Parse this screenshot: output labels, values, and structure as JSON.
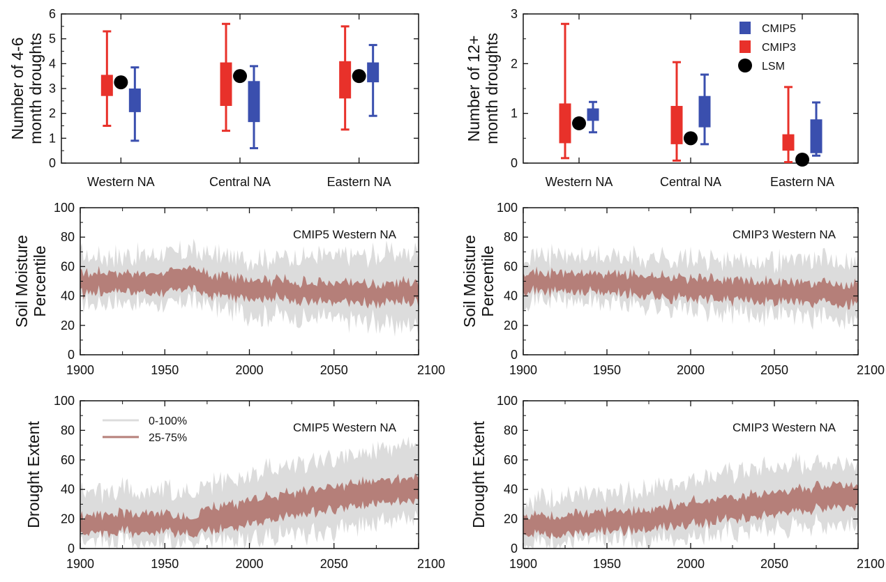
{
  "chart_data": [
    {
      "type": "box",
      "id": "p1",
      "ylabel": [
        "Number of 4-6",
        "month droughts"
      ],
      "ylim": [
        0,
        6
      ],
      "yticks": [
        0,
        1,
        2,
        3,
        4,
        5,
        6
      ],
      "categories": [
        "Western NA",
        "Central NA",
        "Eastern NA"
      ],
      "series": [
        {
          "name": "CMIP3",
          "color": "#e8312a",
          "boxes": [
            {
              "min": 1.5,
              "q1": 2.7,
              "q3": 3.55,
              "max": 5.3
            },
            {
              "min": 1.3,
              "q1": 2.3,
              "q3": 4.05,
              "max": 5.6
            },
            {
              "min": 1.35,
              "q1": 2.6,
              "q3": 4.1,
              "max": 5.5
            }
          ]
        },
        {
          "name": "CMIP5",
          "color": "#3a4fae",
          "boxes": [
            {
              "min": 0.9,
              "q1": 2.05,
              "q3": 3.0,
              "max": 3.85
            },
            {
              "min": 0.6,
              "q1": 1.65,
              "q3": 3.3,
              "max": 3.9
            },
            {
              "min": 1.9,
              "q1": 3.25,
              "q3": 4.05,
              "max": 4.75
            }
          ]
        },
        {
          "name": "LSM",
          "color": "#000000",
          "points": [
            3.25,
            3.5,
            3.5
          ]
        }
      ]
    },
    {
      "type": "box",
      "id": "p2",
      "ylabel": [
        "Number of 12+",
        "month droughts"
      ],
      "ylim": [
        0,
        3
      ],
      "yticks": [
        0,
        1,
        2,
        3
      ],
      "categories": [
        "Western NA",
        "Central NA",
        "Eastern NA"
      ],
      "legend": {
        "position": "top-right",
        "entries": [
          "CMIP5",
          "CMIP3",
          "LSM"
        ]
      },
      "series": [
        {
          "name": "CMIP3",
          "color": "#e8312a",
          "boxes": [
            {
              "min": 0.1,
              "q1": 0.4,
              "q3": 1.2,
              "max": 2.8
            },
            {
              "min": 0.05,
              "q1": 0.38,
              "q3": 1.15,
              "max": 2.03
            },
            {
              "min": 0.02,
              "q1": 0.25,
              "q3": 0.58,
              "max": 1.53
            }
          ]
        },
        {
          "name": "CMIP5",
          "color": "#3a4fae",
          "boxes": [
            {
              "min": 0.62,
              "q1": 0.85,
              "q3": 1.1,
              "max": 1.23
            },
            {
              "min": 0.38,
              "q1": 0.72,
              "q3": 1.35,
              "max": 1.78
            },
            {
              "min": 0.15,
              "q1": 0.2,
              "q3": 0.88,
              "max": 1.22
            }
          ]
        },
        {
          "name": "LSM",
          "color": "#000000",
          "points": [
            0.8,
            0.5,
            0.07
          ]
        }
      ]
    },
    {
      "type": "area",
      "id": "p3",
      "title": "CMIP5 Western NA",
      "ylabel": [
        "Soil Moisture",
        "Percentile"
      ],
      "xlim": [
        1900,
        2100
      ],
      "xticks": [
        1900,
        1950,
        2000,
        2050,
        2100
      ],
      "ylim": [
        0,
        100
      ],
      "yticks": [
        0,
        20,
        40,
        60,
        80,
        100
      ],
      "bands": {
        "x": [
          1900,
          1925,
          1950,
          1965,
          1975,
          2000,
          2025,
          2050,
          2075,
          2100
        ],
        "outer_low": [
          35,
          36,
          34,
          38,
          33,
          28,
          26,
          24,
          22,
          18
        ],
        "outer_high": [
          68,
          67,
          68,
          72,
          68,
          66,
          66,
          67,
          68,
          70
        ],
        "inner_low": [
          42,
          43,
          42,
          46,
          41,
          39,
          37,
          36,
          35,
          36
        ],
        "inner_high": [
          56,
          56,
          55,
          60,
          55,
          52,
          50,
          49,
          48,
          50
        ]
      }
    },
    {
      "type": "area",
      "id": "p4",
      "title": "CMIP3 Western NA",
      "ylabel": [
        "Soil Moisture",
        "Percentile"
      ],
      "xlim": [
        1900,
        2100
      ],
      "xticks": [
        1900,
        1950,
        2000,
        2050,
        2100
      ],
      "ylim": [
        0,
        100
      ],
      "yticks": [
        0,
        20,
        40,
        60,
        80,
        100
      ],
      "bands": {
        "x": [
          1900,
          1925,
          1950,
          1975,
          2000,
          2025,
          2050,
          2075,
          2100
        ],
        "outer_low": [
          38,
          37,
          36,
          34,
          31,
          29,
          28,
          26,
          24
        ],
        "outer_high": [
          68,
          67,
          67,
          66,
          64,
          64,
          64,
          65,
          64
        ],
        "inner_low": [
          44,
          43,
          42,
          40,
          38,
          37,
          36,
          35,
          35
        ],
        "inner_high": [
          57,
          56,
          55,
          54,
          52,
          51,
          50,
          49,
          49
        ]
      }
    },
    {
      "type": "area",
      "id": "p5",
      "title": "CMIP5 Western NA",
      "ylabel": [
        "Drought Extent"
      ],
      "xlim": [
        1900,
        2100
      ],
      "xticks": [
        1900,
        1950,
        2000,
        2050,
        2100
      ],
      "ylim": [
        0,
        100
      ],
      "yticks": [
        0,
        20,
        40,
        60,
        80,
        100
      ],
      "legend": {
        "position": "top-left",
        "entries": [
          "0-100%",
          "25-75%"
        ]
      },
      "bands": {
        "x": [
          1900,
          1925,
          1950,
          1965,
          1975,
          2000,
          2025,
          2050,
          2075,
          2100
        ],
        "outer_low": [
          5,
          5,
          4,
          3,
          4,
          7,
          10,
          13,
          16,
          20
        ],
        "outer_high": [
          38,
          40,
          40,
          36,
          42,
          50,
          57,
          62,
          66,
          70
        ],
        "inner_low": [
          10,
          11,
          11,
          9,
          11,
          16,
          22,
          27,
          30,
          32
        ],
        "inner_high": [
          22,
          24,
          24,
          20,
          26,
          33,
          38,
          43,
          46,
          48
        ]
      }
    },
    {
      "type": "area",
      "id": "p6",
      "title": "CMIP3 Western NA",
      "ylabel": [
        "Drought Extent"
      ],
      "xlim": [
        1900,
        2100
      ],
      "xticks": [
        1900,
        1950,
        2000,
        2050,
        2100
      ],
      "ylim": [
        0,
        100
      ],
      "yticks": [
        0,
        20,
        40,
        60,
        80,
        100
      ],
      "bands": {
        "x": [
          1900,
          1925,
          1950,
          1975,
          2000,
          2025,
          2050,
          2075,
          2100
        ],
        "outer_low": [
          4,
          4,
          5,
          6,
          9,
          11,
          13,
          16,
          19
        ],
        "outer_high": [
          34,
          35,
          36,
          40,
          48,
          52,
          55,
          58,
          60
        ],
        "inner_low": [
          10,
          10,
          11,
          13,
          17,
          20,
          23,
          27,
          30
        ],
        "inner_high": [
          22,
          23,
          24,
          27,
          32,
          35,
          38,
          42,
          45
        ]
      }
    }
  ],
  "colors": {
    "outer_band": "#dcdcdc",
    "inner_band": "#b57f79",
    "cmip3": "#e8312a",
    "cmip5": "#3a4fae",
    "lsm": "#000000"
  }
}
